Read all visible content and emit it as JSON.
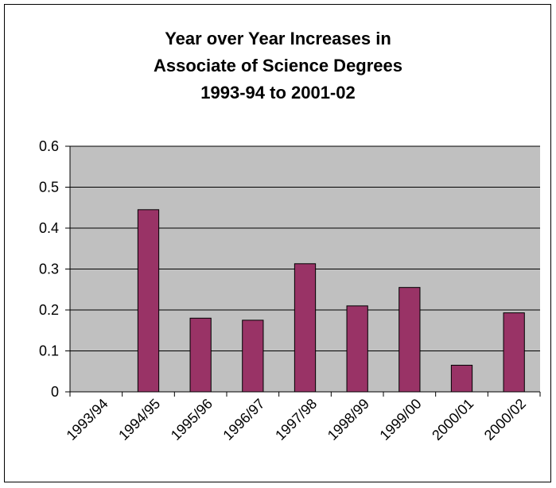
{
  "chart_data": {
    "type": "bar",
    "title_lines": [
      "Year over Year Increases in",
      "Associate of Science Degrees",
      "1993-94 to 2001-02"
    ],
    "categories": [
      "1993/94",
      "1994/95",
      "1995/96",
      "1996/97",
      "1997/98",
      "1998/99",
      "1999/00",
      "2000/01",
      "2000/02"
    ],
    "values": [
      0,
      0.445,
      0.18,
      0.175,
      0.313,
      0.21,
      0.255,
      0.065,
      0.193
    ],
    "xlabel": "",
    "ylabel": "",
    "ylim": [
      0,
      0.6
    ],
    "yticks": [
      "0",
      "0.1",
      "0.2",
      "0.3",
      "0.4",
      "0.5",
      "0.6"
    ],
    "grid": true,
    "legend": "none",
    "colors": {
      "plot_background": "#c0c0c0",
      "bar_fill": "#993366",
      "bar_stroke": "#000000",
      "gridline": "#000000"
    }
  }
}
